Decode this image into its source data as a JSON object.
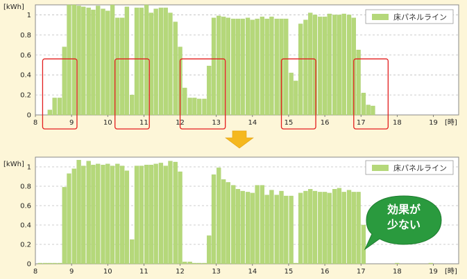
{
  "colors": {
    "background": "#fdf6d8",
    "plot_bg": "#ffffff",
    "bar": "#b5d87a",
    "bar_edge": "#a3c865",
    "grid": "#bdbdbd",
    "highlight": "#e31c1c",
    "arrow": "#f5b81e",
    "bubble": "#2a9a3e"
  },
  "arrow_icon": "down-arrow-icon",
  "callout": {
    "line1": "効果が",
    "line2": "少ない"
  },
  "chart_data": [
    {
      "type": "bar",
      "unit_label": "[kWh]",
      "xunit_label": "[時]",
      "legend": {
        "label": "床パネルライン",
        "placement": "top-right"
      },
      "xlim": [
        8,
        19.7
      ],
      "ylim": [
        0,
        1.1
      ],
      "yticks": [
        0,
        0.2,
        0.4,
        0.6,
        0.8,
        1
      ],
      "ytick_labels": [
        "0",
        "0.2",
        "0.4",
        "0.6",
        "0.8",
        "1"
      ],
      "xticks": [
        8,
        9,
        10,
        11,
        12,
        13,
        14,
        15,
        16,
        17,
        18,
        19
      ],
      "xtick_labels": [
        "8",
        "9",
        "10",
        "11",
        "12",
        "13",
        "14",
        "15",
        "16",
        "17",
        "18",
        "19"
      ],
      "grid": "horizontal-dashed",
      "bar_step_hours": 0.1333,
      "bars": [
        {
          "x": 8.4,
          "y": 0.05
        },
        {
          "x": 8.53,
          "y": 0.17
        },
        {
          "x": 8.67,
          "y": 0.17
        },
        {
          "x": 8.8,
          "y": 0.68
        },
        {
          "x": 8.93,
          "y": 1.1
        },
        {
          "x": 9.07,
          "y": 1.1
        },
        {
          "x": 9.2,
          "y": 1.09
        },
        {
          "x": 9.33,
          "y": 1.08
        },
        {
          "x": 9.47,
          "y": 1.07
        },
        {
          "x": 9.6,
          "y": 1.05
        },
        {
          "x": 9.73,
          "y": 1.09
        },
        {
          "x": 9.87,
          "y": 1.06
        },
        {
          "x": 10.0,
          "y": 1.04
        },
        {
          "x": 10.13,
          "y": 1.1
        },
        {
          "x": 10.27,
          "y": 0.97
        },
        {
          "x": 10.4,
          "y": 0.97
        },
        {
          "x": 10.53,
          "y": 1.08
        },
        {
          "x": 10.67,
          "y": 0.2
        },
        {
          "x": 10.8,
          "y": 1.07
        },
        {
          "x": 10.93,
          "y": 1.07
        },
        {
          "x": 11.07,
          "y": 1.1
        },
        {
          "x": 11.2,
          "y": 1.02
        },
        {
          "x": 11.33,
          "y": 1.06
        },
        {
          "x": 11.47,
          "y": 1.07
        },
        {
          "x": 11.6,
          "y": 1.07
        },
        {
          "x": 11.73,
          "y": 1.02
        },
        {
          "x": 11.87,
          "y": 0.93
        },
        {
          "x": 12.0,
          "y": 0.68
        },
        {
          "x": 12.13,
          "y": 0.27
        },
        {
          "x": 12.27,
          "y": 0.17
        },
        {
          "x": 12.4,
          "y": 0.17
        },
        {
          "x": 12.53,
          "y": 0.16
        },
        {
          "x": 12.67,
          "y": 0.16
        },
        {
          "x": 12.8,
          "y": 0.49
        },
        {
          "x": 12.93,
          "y": 0.97
        },
        {
          "x": 13.07,
          "y": 0.99
        },
        {
          "x": 13.2,
          "y": 0.98
        },
        {
          "x": 13.33,
          "y": 0.97
        },
        {
          "x": 13.47,
          "y": 0.96
        },
        {
          "x": 13.6,
          "y": 0.96
        },
        {
          "x": 13.73,
          "y": 0.96
        },
        {
          "x": 13.87,
          "y": 0.97
        },
        {
          "x": 14.0,
          "y": 0.95
        },
        {
          "x": 14.13,
          "y": 0.96
        },
        {
          "x": 14.27,
          "y": 0.98
        },
        {
          "x": 14.4,
          "y": 0.96
        },
        {
          "x": 14.53,
          "y": 0.98
        },
        {
          "x": 14.67,
          "y": 0.96
        },
        {
          "x": 14.8,
          "y": 0.96
        },
        {
          "x": 14.93,
          "y": 0.96
        },
        {
          "x": 15.07,
          "y": 0.42
        },
        {
          "x": 15.2,
          "y": 0.34
        },
        {
          "x": 15.33,
          "y": 0.91
        },
        {
          "x": 15.47,
          "y": 0.95
        },
        {
          "x": 15.6,
          "y": 1.02
        },
        {
          "x": 15.73,
          "y": 1.0
        },
        {
          "x": 15.87,
          "y": 0.98
        },
        {
          "x": 16.0,
          "y": 0.98
        },
        {
          "x": 16.13,
          "y": 1.01
        },
        {
          "x": 16.27,
          "y": 1.0
        },
        {
          "x": 16.4,
          "y": 1.0
        },
        {
          "x": 16.53,
          "y": 1.01
        },
        {
          "x": 16.67,
          "y": 1.0
        },
        {
          "x": 16.8,
          "y": 0.97
        },
        {
          "x": 16.93,
          "y": 0.65
        },
        {
          "x": 17.07,
          "y": 0.22
        },
        {
          "x": 17.2,
          "y": 0.1
        },
        {
          "x": 17.33,
          "y": 0.09
        }
      ],
      "highlight_ranges": [
        [
          8.2,
          9.15
        ],
        [
          10.2,
          11.15
        ],
        [
          12.0,
          13.25
        ],
        [
          14.8,
          15.75
        ],
        [
          16.8,
          17.75
        ]
      ]
    },
    {
      "type": "bar",
      "unit_label": "[kWh]",
      "xunit_label": "[時]",
      "legend": {
        "label": "床パネルライン",
        "placement": "top-right"
      },
      "xlim": [
        8,
        19.7
      ],
      "ylim": [
        0,
        1.1
      ],
      "yticks": [
        0,
        0.2,
        0.4,
        0.6,
        0.8,
        1
      ],
      "ytick_labels": [
        "0",
        "0.2",
        "0.4",
        "0.6",
        "0.8",
        "1"
      ],
      "xticks": [
        8,
        9,
        10,
        11,
        12,
        13,
        14,
        15,
        16,
        17,
        18,
        19
      ],
      "xtick_labels": [
        "8",
        "9",
        "10",
        "11",
        "12",
        "13",
        "14",
        "15",
        "16",
        "17",
        "18",
        "19"
      ],
      "grid": "horizontal-dashed",
      "bar_step_hours": 0.1333,
      "bars": [
        {
          "x": 8.13,
          "y": 0.0
        },
        {
          "x": 8.27,
          "y": 0.0
        },
        {
          "x": 8.4,
          "y": 0.0
        },
        {
          "x": 8.53,
          "y": 0.0
        },
        {
          "x": 8.67,
          "y": 0.0
        },
        {
          "x": 8.8,
          "y": 0.79
        },
        {
          "x": 8.93,
          "y": 0.93
        },
        {
          "x": 9.07,
          "y": 0.98
        },
        {
          "x": 9.2,
          "y": 1.07
        },
        {
          "x": 9.33,
          "y": 1.01
        },
        {
          "x": 9.47,
          "y": 1.06
        },
        {
          "x": 9.6,
          "y": 1.02
        },
        {
          "x": 9.73,
          "y": 1.03
        },
        {
          "x": 9.87,
          "y": 1.02
        },
        {
          "x": 10.0,
          "y": 1.03
        },
        {
          "x": 10.13,
          "y": 1.01
        },
        {
          "x": 10.27,
          "y": 1.03
        },
        {
          "x": 10.4,
          "y": 1.01
        },
        {
          "x": 10.53,
          "y": 0.96
        },
        {
          "x": 10.67,
          "y": 0.25
        },
        {
          "x": 10.8,
          "y": 1.01
        },
        {
          "x": 10.93,
          "y": 1.01
        },
        {
          "x": 11.07,
          "y": 1.02
        },
        {
          "x": 11.2,
          "y": 1.02
        },
        {
          "x": 11.33,
          "y": 1.03
        },
        {
          "x": 11.47,
          "y": 1.04
        },
        {
          "x": 11.6,
          "y": 1.01
        },
        {
          "x": 11.73,
          "y": 1.06
        },
        {
          "x": 11.87,
          "y": 1.05
        },
        {
          "x": 12.0,
          "y": 0.95
        },
        {
          "x": 12.13,
          "y": 0.02
        },
        {
          "x": 12.27,
          "y": 0.02
        },
        {
          "x": 12.4,
          "y": 0.0
        },
        {
          "x": 12.53,
          "y": 0.0
        },
        {
          "x": 12.67,
          "y": 0.0
        },
        {
          "x": 12.8,
          "y": 0.29
        },
        {
          "x": 12.93,
          "y": 0.92
        },
        {
          "x": 13.07,
          "y": 0.99
        },
        {
          "x": 13.2,
          "y": 0.87
        },
        {
          "x": 13.33,
          "y": 0.84
        },
        {
          "x": 13.47,
          "y": 0.81
        },
        {
          "x": 13.6,
          "y": 0.77
        },
        {
          "x": 13.73,
          "y": 0.75
        },
        {
          "x": 13.87,
          "y": 0.74
        },
        {
          "x": 14.0,
          "y": 0.73
        },
        {
          "x": 14.13,
          "y": 0.81
        },
        {
          "x": 14.27,
          "y": 0.81
        },
        {
          "x": 14.4,
          "y": 0.71
        },
        {
          "x": 14.53,
          "y": 0.76
        },
        {
          "x": 14.67,
          "y": 0.71
        },
        {
          "x": 14.8,
          "y": 0.75
        },
        {
          "x": 14.93,
          "y": 0.7
        },
        {
          "x": 15.07,
          "y": 0.7
        },
        {
          "x": 15.2,
          "y": 0.0
        },
        {
          "x": 15.33,
          "y": 0.73
        },
        {
          "x": 15.47,
          "y": 0.75
        },
        {
          "x": 15.6,
          "y": 0.77
        },
        {
          "x": 15.73,
          "y": 0.75
        },
        {
          "x": 15.87,
          "y": 0.74
        },
        {
          "x": 16.0,
          "y": 0.74
        },
        {
          "x": 16.13,
          "y": 0.73
        },
        {
          "x": 16.27,
          "y": 0.77
        },
        {
          "x": 16.4,
          "y": 0.78
        },
        {
          "x": 16.53,
          "y": 0.74
        },
        {
          "x": 16.67,
          "y": 0.76
        },
        {
          "x": 16.8,
          "y": 0.74
        },
        {
          "x": 16.93,
          "y": 0.74
        },
        {
          "x": 17.07,
          "y": 0.4
        },
        {
          "x": 18.0,
          "y": 0.0
        },
        {
          "x": 18.93,
          "y": 0.0
        }
      ],
      "highlight_ranges": []
    }
  ]
}
